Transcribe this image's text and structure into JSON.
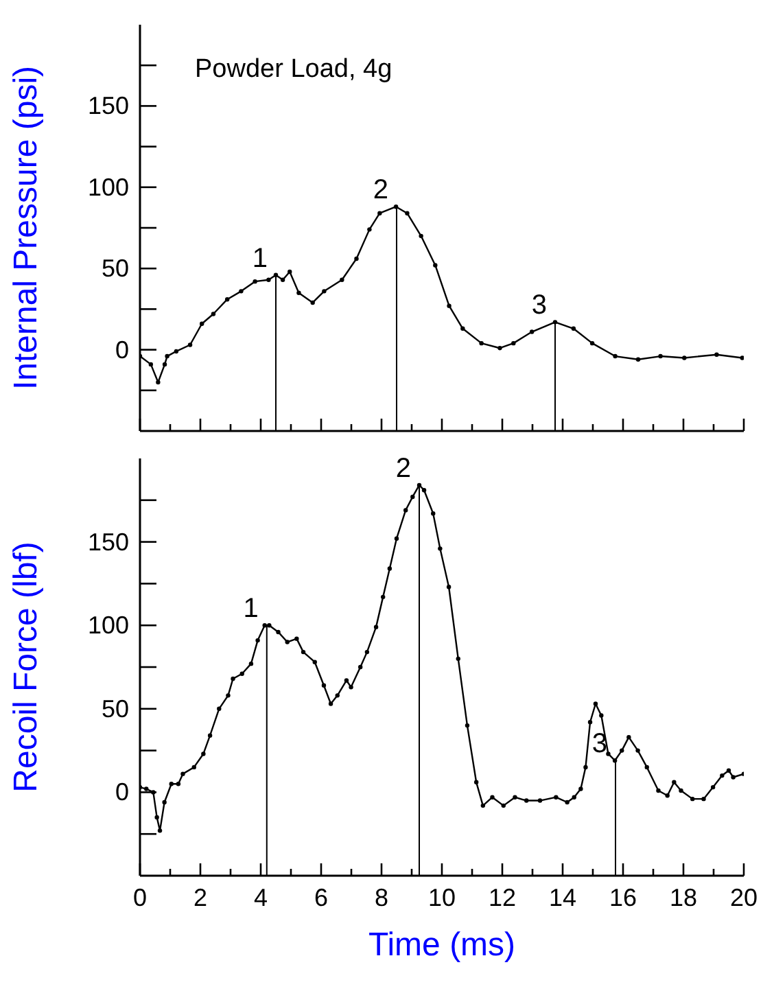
{
  "chart_data": [
    {
      "type": "line",
      "ylabel": "Internal Pressure (psi)",
      "annotations": [
        "Powder Load, 4g",
        {
          "text": "1",
          "x": 4.5,
          "y": 46
        },
        {
          "text": "2",
          "x": 8.5,
          "y": 88
        },
        {
          "text": "3",
          "x": 13.75,
          "y": 17
        }
      ],
      "tick_labels": "y",
      "marker": "circle",
      "line_style": "solid",
      "grid": false,
      "legend": false,
      "xlim": [
        0,
        20
      ],
      "ylim": [
        -50,
        200
      ],
      "xticks": [
        0,
        {
          "value": 1,
          "label": null
        },
        2,
        {
          "value": 3,
          "label": null
        },
        4,
        {
          "value": 5,
          "label": null
        },
        6,
        {
          "value": 7,
          "label": null
        },
        8,
        {
          "value": 9,
          "label": null
        },
        10,
        {
          "value": 11,
          "label": null
        },
        12,
        {
          "value": 13,
          "label": null
        },
        14,
        {
          "value": 15,
          "label": null
        },
        16,
        {
          "value": 17,
          "label": null
        },
        18,
        {
          "value": 19,
          "label": null
        },
        20
      ],
      "yticks": [
        {
          "value": -25,
          "label": null
        },
        0,
        {
          "value": 25,
          "label": null
        },
        50,
        {
          "value": 75,
          "label": null
        },
        100,
        {
          "value": 125,
          "label": null
        },
        150,
        {
          "value": 175,
          "label": null
        }
      ],
      "ref_lines": [
        {
          "axis": "x",
          "value": 4.5,
          "color": "#000000"
        },
        {
          "axis": "x",
          "value": 8.5,
          "color": "#000000"
        },
        {
          "axis": "x",
          "value": 13.75,
          "color": "#000000"
        }
      ],
      "series": [
        {
          "color": "#000000",
          "x": [
            0,
            0.36,
            0.6,
            0.82,
            0.9,
            1.2,
            1.66,
            2.05,
            2.43,
            2.89,
            3.35,
            3.81,
            4.26,
            4.5,
            4.73,
            4.96,
            5.26,
            5.72,
            6.1,
            6.69,
            7.17,
            7.6,
            7.94,
            8.48,
            8.85,
            9.31,
            9.78,
            10.24,
            10.69,
            11.31,
            11.92,
            12.37,
            12.98,
            13.75,
            14.36,
            14.98,
            15.74,
            16.5,
            17.24,
            18.03,
            19.1,
            19.95
          ],
          "values": [
            -4,
            -9,
            -20,
            -9,
            -4,
            -1,
            3,
            16,
            22,
            31,
            36,
            42,
            43,
            46,
            43,
            48,
            35,
            29,
            36,
            43,
            56,
            74,
            84,
            88,
            84,
            70,
            52,
            27,
            13,
            4,
            1,
            4,
            11,
            17,
            13,
            4,
            -4,
            -6,
            -4,
            -5,
            -3,
            -5
          ]
        }
      ]
    },
    {
      "type": "line",
      "xlabel": "Time (ms)",
      "ylabel": "Recoil Force (lbf)",
      "annotations": [
        {
          "text": "1",
          "x": 4.2,
          "y": 100
        },
        {
          "text": "2",
          "x": 9.25,
          "y": 184
        },
        {
          "text": "3",
          "x": 15.75,
          "y": 19
        }
      ],
      "marker": "circle",
      "line_style": "solid",
      "grid": false,
      "legend": false,
      "xlim": [
        0,
        20
      ],
      "ylim": [
        -50,
        200
      ],
      "xticks": [
        0,
        {
          "value": 1,
          "label": null
        },
        2,
        {
          "value": 3,
          "label": null
        },
        4,
        {
          "value": 5,
          "label": null
        },
        6,
        {
          "value": 7,
          "label": null
        },
        8,
        {
          "value": 9,
          "label": null
        },
        10,
        {
          "value": 11,
          "label": null
        },
        12,
        {
          "value": 13,
          "label": null
        },
        14,
        {
          "value": 15,
          "label": null
        },
        16,
        {
          "value": 17,
          "label": null
        },
        18,
        {
          "value": 19,
          "label": null
        },
        20
      ],
      "yticks": [
        {
          "value": -25,
          "label": null
        },
        0,
        {
          "value": 25,
          "label": null
        },
        50,
        {
          "value": 75,
          "label": null
        },
        100,
        {
          "value": 125,
          "label": null
        },
        150,
        {
          "value": 175,
          "label": null
        }
      ],
      "ref_lines": [
        {
          "axis": "x",
          "value": 4.2,
          "color": "#000000"
        },
        {
          "axis": "x",
          "value": 9.25,
          "color": "#000000"
        },
        {
          "axis": "x",
          "value": 15.75,
          "color": "#000000"
        }
      ],
      "series": [
        {
          "color": "#000000",
          "x": [
            0,
            0.21,
            0.44,
            0.56,
            0.66,
            0.81,
            1.04,
            1.27,
            1.42,
            1.79,
            2.1,
            2.32,
            2.62,
            2.92,
            3.08,
            3.38,
            3.68,
            3.9,
            4.13,
            4.28,
            4.58,
            4.88,
            5.19,
            5.41,
            5.79,
            6.09,
            6.32,
            6.54,
            6.84,
            6.99,
            7.3,
            7.52,
            7.82,
            8.05,
            8.27,
            8.5,
            8.8,
            9.03,
            9.25,
            9.41,
            9.71,
            9.94,
            10.23,
            10.54,
            10.84,
            11.14,
            11.36,
            11.67,
            12.04,
            12.42,
            12.8,
            13.25,
            13.78,
            14.15,
            14.38,
            14.6,
            14.76,
            14.91,
            15.09,
            15.28,
            15.51,
            15.73,
            15.96,
            16.19,
            16.49,
            16.79,
            17.17,
            17.47,
            17.69,
            17.92,
            18.3,
            18.67,
            18.98,
            19.28,
            19.5,
            19.65,
            20
          ],
          "values": [
            3,
            2,
            0,
            -15,
            -23,
            -6,
            5,
            5,
            11,
            15,
            23,
            34,
            50,
            58,
            68,
            71,
            77,
            91,
            100,
            100,
            96,
            90,
            92,
            84,
            78,
            64,
            53,
            58,
            67,
            63,
            75,
            84,
            99,
            117,
            134,
            152,
            169,
            177,
            184,
            181,
            167,
            146,
            123,
            80,
            40,
            6,
            -8,
            -3,
            -8,
            -3,
            -5,
            -5,
            -3,
            -6,
            -3,
            2,
            15,
            42,
            53,
            46,
            23,
            19,
            25,
            33,
            25,
            15,
            1,
            -2,
            6,
            1,
            -4,
            -4,
            3,
            10,
            13,
            9,
            11
          ]
        }
      ]
    }
  ]
}
